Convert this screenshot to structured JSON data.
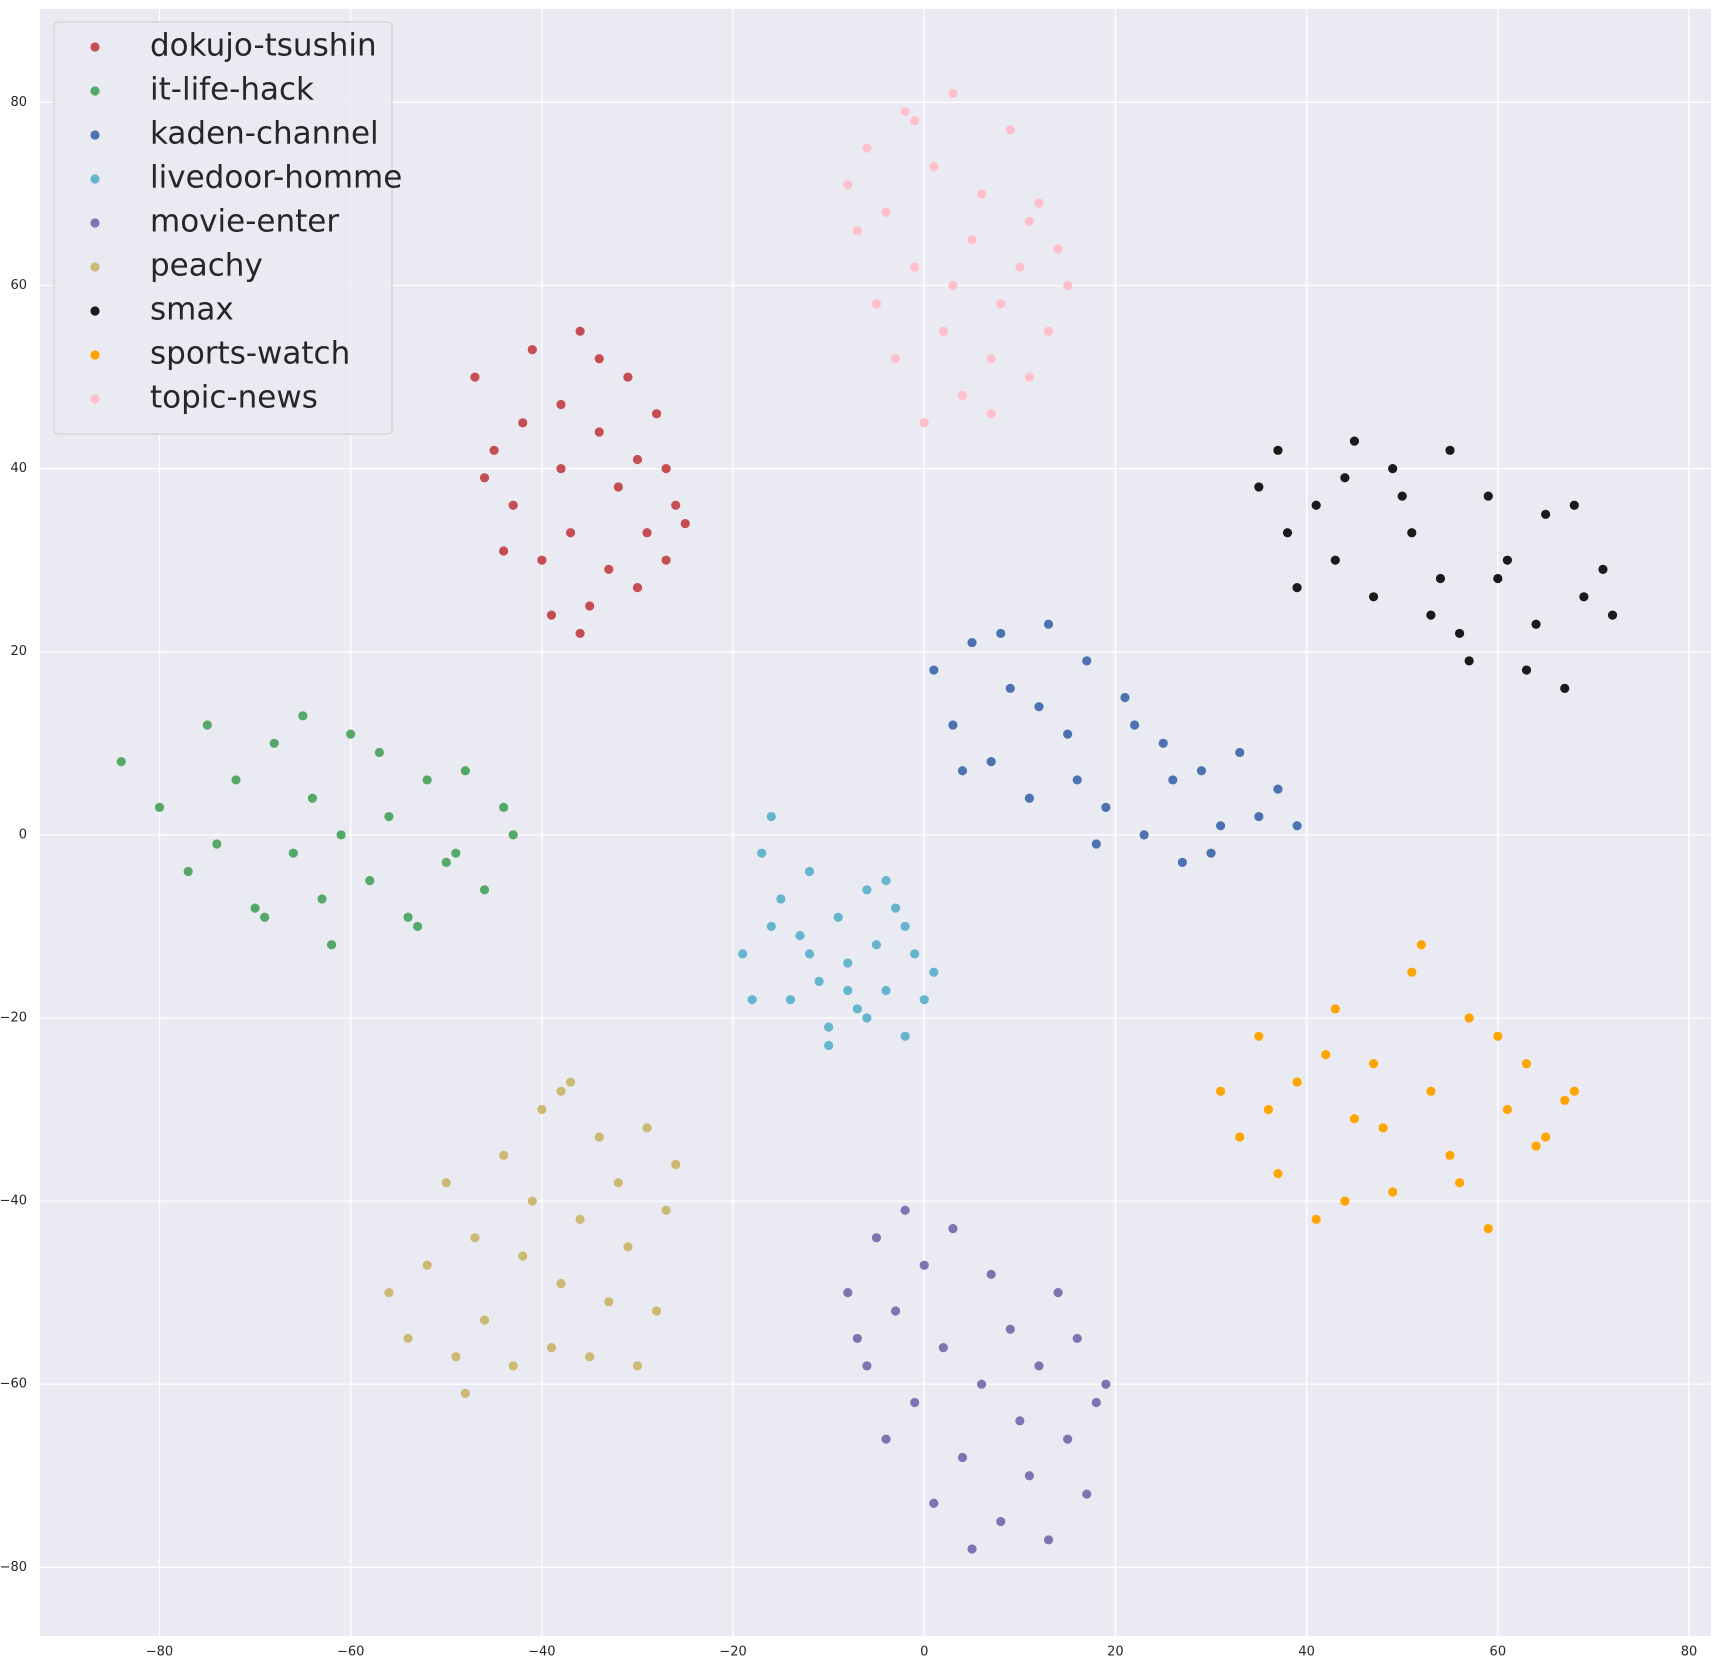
{
  "chart_data": {
    "type": "scatter",
    "xlim": [
      -92.5,
      82.3
    ],
    "ylim": [
      -87.5,
      90.2
    ],
    "xticks": [
      {
        "value": -80,
        "label": "−80"
      },
      {
        "value": -60,
        "label": "−60"
      },
      {
        "value": -40,
        "label": "−40"
      },
      {
        "value": -20,
        "label": "−20"
      },
      0,
      20,
      40,
      60,
      80
    ],
    "yticks": [
      {
        "value": -80,
        "label": "−80"
      },
      {
        "value": -60,
        "label": "−60"
      },
      {
        "value": -40,
        "label": "−40"
      },
      {
        "value": -20,
        "label": "−20"
      },
      0,
      20,
      40,
      60,
      80
    ],
    "grid": true,
    "legend": "upper-left",
    "series": [
      {
        "name": "dokujo-tsushin",
        "color": "#c44e52",
        "x": [
          -47,
          -45,
          -43,
          -41,
          -40,
          -38,
          -36,
          -35,
          -34,
          -32,
          -31,
          -30,
          -29,
          -28,
          -27,
          -26,
          -44,
          -42,
          -39,
          -37,
          -33,
          -30,
          -27,
          -25,
          -46,
          -36,
          -34,
          -38
        ],
        "y": [
          50,
          42,
          36,
          53,
          30,
          47,
          55,
          25,
          44,
          38,
          50,
          27,
          33,
          46,
          40,
          36,
          31,
          45,
          24,
          33,
          29,
          41,
          30,
          34,
          39,
          22,
          52,
          40
        ]
      },
      {
        "name": "it-life-hack",
        "color": "#55a868",
        "x": [
          -84,
          -80,
          -77,
          -75,
          -72,
          -70,
          -68,
          -66,
          -64,
          -62,
          -60,
          -58,
          -56,
          -54,
          -52,
          -50,
          -48,
          -46,
          -44,
          -43,
          -74,
          -69,
          -65,
          -61,
          -57,
          -53,
          -49,
          -63
        ],
        "y": [
          8,
          3,
          -4,
          12,
          6,
          -8,
          10,
          -2,
          4,
          -12,
          11,
          -5,
          2,
          -9,
          6,
          -3,
          7,
          -6,
          3,
          0,
          -1,
          -9,
          13,
          0,
          9,
          -10,
          -2,
          -7
        ]
      },
      {
        "name": "kaden-channel",
        "color": "#4c72b0",
        "x": [
          1,
          3,
          5,
          7,
          9,
          11,
          13,
          15,
          17,
          19,
          21,
          23,
          25,
          27,
          29,
          31,
          33,
          35,
          37,
          39,
          4,
          8,
          12,
          18,
          22,
          26,
          30,
          16
        ],
        "y": [
          18,
          12,
          21,
          8,
          16,
          4,
          23,
          11,
          19,
          3,
          15,
          0,
          10,
          -3,
          7,
          1,
          9,
          2,
          5,
          1,
          7,
          22,
          14,
          -1,
          12,
          6,
          -2,
          6
        ]
      },
      {
        "name": "livedoor-homme",
        "color": "#64b5cd",
        "x": [
          -19,
          -17,
          -16,
          -15,
          -14,
          -13,
          -12,
          -11,
          -10,
          -9,
          -8,
          -7,
          -6,
          -5,
          -4,
          -3,
          -2,
          -1,
          0,
          1,
          -18,
          -16,
          -12,
          -8,
          -4,
          -2,
          -10,
          -6
        ],
        "y": [
          -13,
          -2,
          2,
          -7,
          -18,
          -11,
          -4,
          -16,
          -21,
          -9,
          -14,
          -19,
          -6,
          -12,
          -17,
          -8,
          -22,
          -13,
          -18,
          -15,
          -18,
          -10,
          -13,
          -17,
          -5,
          -10,
          -23,
          -20
        ]
      },
      {
        "name": "movie-enter",
        "color": "#8172b2",
        "x": [
          -8,
          -6,
          -5,
          -4,
          -3,
          -2,
          -1,
          0,
          1,
          2,
          3,
          4,
          5,
          6,
          7,
          8,
          9,
          10,
          11,
          12,
          13,
          14,
          15,
          16,
          17,
          18,
          -7,
          19
        ],
        "y": [
          -50,
          -58,
          -44,
          -66,
          -52,
          -41,
          -62,
          -47,
          -73,
          -56,
          -43,
          -68,
          -78,
          -60,
          -48,
          -75,
          -54,
          -64,
          -70,
          -58,
          -77,
          -50,
          -66,
          -55,
          -72,
          -62,
          -55,
          -60
        ]
      },
      {
        "name": "peachy",
        "color": "#ccb974",
        "x": [
          -56,
          -54,
          -52,
          -50,
          -48,
          -47,
          -46,
          -44,
          -43,
          -42,
          -41,
          -40,
          -39,
          -38,
          -37,
          -36,
          -35,
          -34,
          -33,
          -32,
          -31,
          -30,
          -29,
          -28,
          -27,
          -26,
          -49,
          -38
        ],
        "y": [
          -50,
          -55,
          -47,
          -38,
          -61,
          -44,
          -53,
          -35,
          -58,
          -46,
          -40,
          -30,
          -56,
          -49,
          -27,
          -42,
          -57,
          -33,
          -51,
          -38,
          -45,
          -58,
          -32,
          -52,
          -41,
          -36,
          -57,
          -28
        ]
      },
      {
        "name": "smax",
        "color": "#1a1a1a",
        "x": [
          35,
          37,
          39,
          41,
          43,
          45,
          47,
          49,
          51,
          53,
          55,
          57,
          59,
          61,
          63,
          65,
          67,
          69,
          71,
          72,
          38,
          44,
          50,
          56,
          60,
          64,
          68,
          54
        ],
        "y": [
          38,
          42,
          27,
          36,
          30,
          43,
          26,
          40,
          33,
          24,
          42,
          19,
          37,
          30,
          18,
          35,
          16,
          26,
          29,
          24,
          33,
          39,
          37,
          22,
          28,
          23,
          36,
          28
        ]
      },
      {
        "name": "sports-watch",
        "color": "#ffa500",
        "x": [
          31,
          33,
          35,
          37,
          39,
          41,
          43,
          45,
          47,
          49,
          51,
          53,
          55,
          57,
          59,
          61,
          63,
          65,
          67,
          68,
          36,
          42,
          48,
          52,
          56,
          60,
          64,
          44
        ],
        "y": [
          -28,
          -33,
          -22,
          -37,
          -27,
          -42,
          -19,
          -31,
          -25,
          -39,
          -15,
          -28,
          -35,
          -20,
          -43,
          -30,
          -25,
          -33,
          -29,
          -28,
          -30,
          -24,
          -32,
          -12,
          -38,
          -22,
          -34,
          -40
        ]
      },
      {
        "name": "topic-news",
        "color": "#ffc0cb",
        "x": [
          -8,
          -7,
          -6,
          -5,
          -4,
          -3,
          -2,
          -1,
          0,
          1,
          2,
          3,
          4,
          5,
          6,
          7,
          8,
          9,
          10,
          11,
          12,
          13,
          14,
          15,
          -1,
          3,
          7,
          11
        ],
        "y": [
          71,
          66,
          75,
          58,
          68,
          52,
          79,
          62,
          45,
          73,
          55,
          81,
          48,
          65,
          70,
          46,
          58,
          77,
          62,
          50,
          69,
          55,
          64,
          60,
          78,
          60,
          52,
          67
        ]
      }
    ]
  }
}
